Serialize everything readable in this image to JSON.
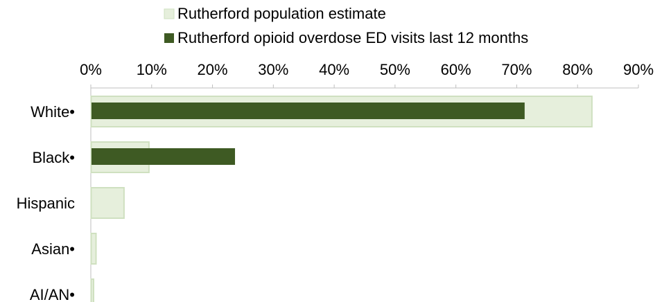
{
  "chart_data": {
    "type": "bar",
    "orientation": "horizontal",
    "categories": [
      "White•",
      "Black•",
      "Hispanic",
      "Asian•",
      "AI/AN•"
    ],
    "series": [
      {
        "name": "Rutherford population estimate",
        "color": "#e6efdc",
        "border_color": "#cfe0c0",
        "values": [
          82.3,
          9.5,
          5.4,
          0.8,
          0.4
        ]
      },
      {
        "name": "Rutherford opioid overdose ED visits last 12 months",
        "color": "#3e5a23",
        "values": [
          71.3,
          23.7,
          0,
          0,
          0
        ]
      }
    ],
    "x_axis": {
      "position": "top",
      "min": 0,
      "max": 90,
      "step": 10,
      "tick_labels": [
        "0%",
        "10%",
        "20%",
        "30%",
        "40%",
        "50%",
        "60%",
        "70%",
        "80%",
        "90%"
      ]
    },
    "legend_position": "top",
    "grid": false
  }
}
